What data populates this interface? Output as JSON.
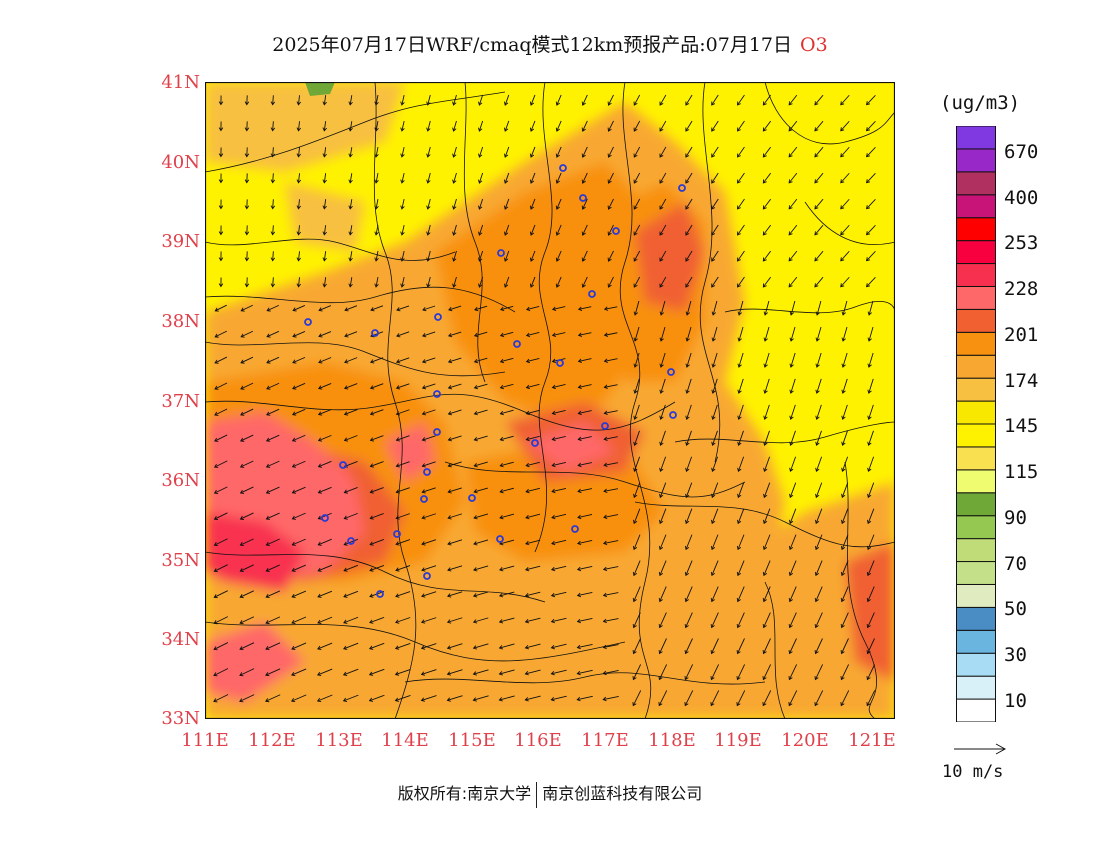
{
  "title": {
    "main": "2025年07月17日WRF/cmaq模式12km预报产品:07月17日",
    "variable": "O3"
  },
  "axes": {
    "lat_labels": [
      "41N",
      "40N",
      "39N",
      "38N",
      "37N",
      "36N",
      "35N",
      "34N",
      "33N"
    ],
    "lon_labels": [
      "111E",
      "112E",
      "113E",
      "114E",
      "115E",
      "116E",
      "117E",
      "118E",
      "119E",
      "120E",
      "121E"
    ]
  },
  "colorbar": {
    "unit": "(ug/m3)",
    "colors": [
      "#ffffff",
      "#d8f0f8",
      "#a8dcf4",
      "#6ab4e0",
      "#4a8cc4",
      "#e0ecc0",
      "#c4e088",
      "#c0dc78",
      "#94c850",
      "#70a838",
      "#f0fc70",
      "#f8e050",
      "#fff200",
      "#f8e800",
      "#f8c040",
      "#f8a830",
      "#f89010",
      "#f06030",
      "#ff6868",
      "#f83050",
      "#f80040",
      "#ff0000",
      "#c81478",
      "#b03060",
      "#9828c8",
      "#8038e0"
    ],
    "labels": [
      "10",
      "30",
      "50",
      "70",
      "90",
      "115",
      "145",
      "174",
      "201",
      "228",
      "253",
      "400",
      "670"
    ]
  },
  "reference_vector": {
    "label": "10 m/s"
  },
  "footer": {
    "left": "版权所有:南京大学",
    "right": "南京创蓝科技有限公司"
  }
}
